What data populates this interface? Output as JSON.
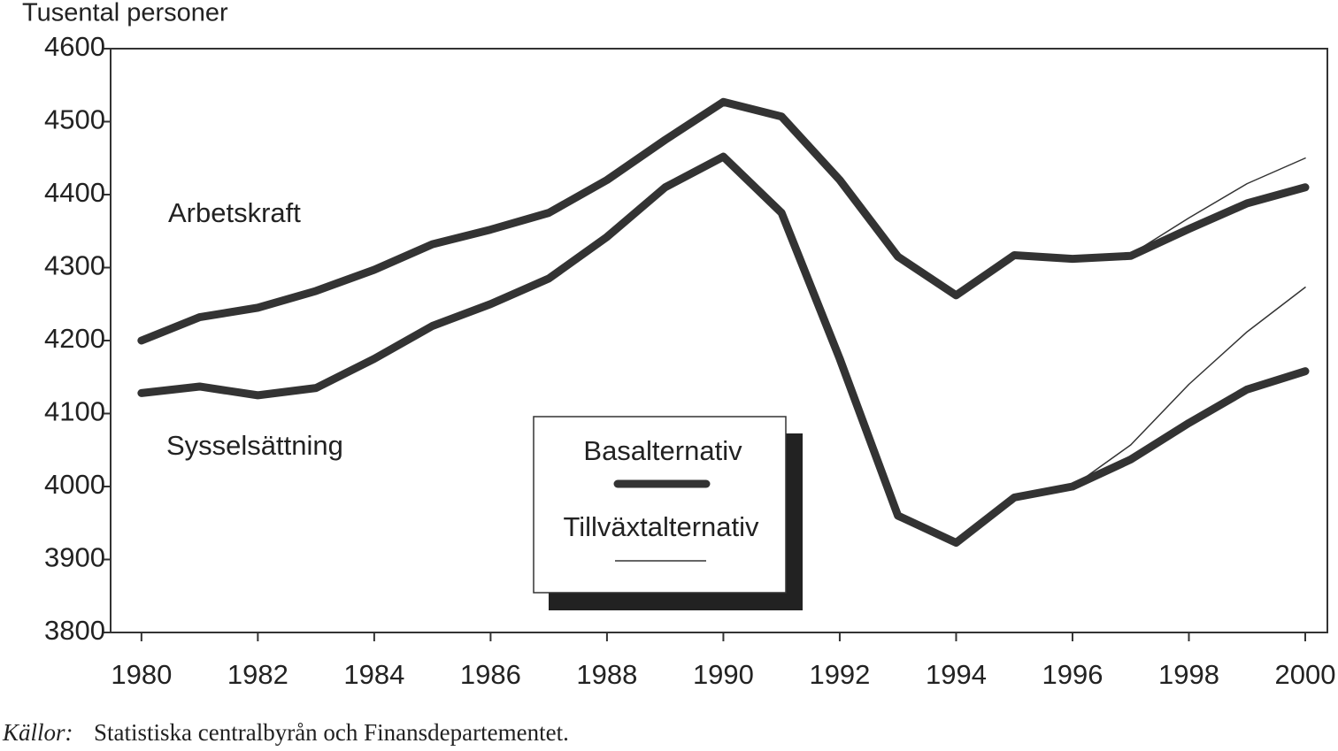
{
  "chart_data": {
    "type": "line",
    "y_axis_label": "Tusental personer",
    "x": [
      1980,
      1981,
      1982,
      1983,
      1984,
      1985,
      1986,
      1987,
      1988,
      1989,
      1990,
      1991,
      1992,
      1993,
      1994,
      1995,
      1996,
      1997,
      1998,
      1999,
      2000
    ],
    "series": [
      {
        "name": "Arbetskraft",
        "color": "#333333",
        "values": [
          4200,
          4232,
          4245,
          4268,
          4297,
          4332,
          4352,
          4375,
          4420,
          4475,
          4527,
          4507,
          4420,
          4315,
          4262,
          4317,
          4312,
          4316,
          4353,
          4388,
          4410
        ],
        "growth_values": [
          null,
          null,
          null,
          null,
          null,
          null,
          null,
          null,
          null,
          null,
          null,
          null,
          null,
          null,
          null,
          null,
          null,
          4318,
          4368,
          4415,
          4450
        ]
      },
      {
        "name": "Sysselsättning",
        "color": "#333333",
        "values": [
          4128,
          4137,
          4125,
          4135,
          4175,
          4220,
          4250,
          4285,
          4342,
          4410,
          4452,
          4375,
          4175,
          3960,
          3923,
          3985,
          4000,
          4037,
          4087,
          4133,
          4158
        ],
        "growth_values": [
          null,
          null,
          null,
          null,
          null,
          null,
          null,
          null,
          null,
          null,
          null,
          null,
          null,
          null,
          null,
          null,
          4000,
          4057,
          4140,
          4212,
          4273
        ]
      }
    ],
    "legend": [
      "Basalternativ",
      "Tillväxtalternativ"
    ],
    "xlim": [
      1979.47,
      2000.38
    ],
    "xticks": [
      1980,
      1982,
      1984,
      1986,
      1988,
      1990,
      1992,
      1994,
      1996,
      1998,
      2000
    ],
    "ylim": [
      3800,
      4600
    ],
    "yticks": [
      3800,
      3900,
      4000,
      4100,
      4200,
      4300,
      4400,
      4500,
      4600
    ],
    "source_label": "Källor:",
    "source": "Statistiska centralbyrån och Finansdepartementet."
  }
}
